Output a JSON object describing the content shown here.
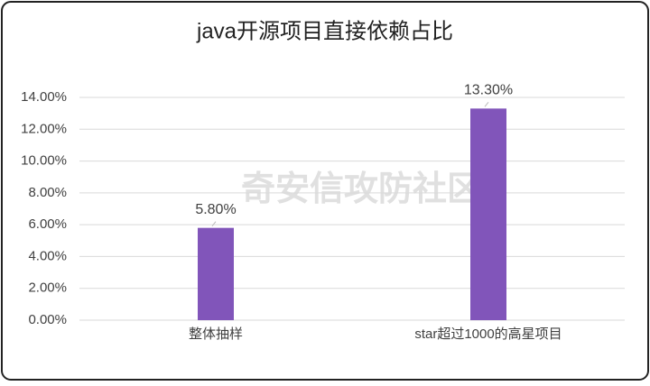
{
  "chart_data": {
    "type": "bar",
    "title": "java开源项目直接依赖占比",
    "categories": [
      "整体抽样",
      "star超过1000的高星项目"
    ],
    "values": [
      5.8,
      13.3
    ],
    "value_labels": [
      "5.80%",
      "13.30%"
    ],
    "color": "#8155ba",
    "ylim": [
      0,
      14
    ],
    "yticks": [
      {
        "value": 0,
        "label": "0.00%"
      },
      {
        "value": 2,
        "label": "2.00%"
      },
      {
        "value": 4,
        "label": "4.00%"
      },
      {
        "value": 6,
        "label": "6.00%"
      },
      {
        "value": 8,
        "label": "8.00%"
      },
      {
        "value": 10,
        "label": "10.00%"
      },
      {
        "value": 12,
        "label": "12.00%"
      },
      {
        "value": 14,
        "label": "14.00%"
      }
    ],
    "grid": true,
    "watermark": "奇安信攻防社区"
  }
}
